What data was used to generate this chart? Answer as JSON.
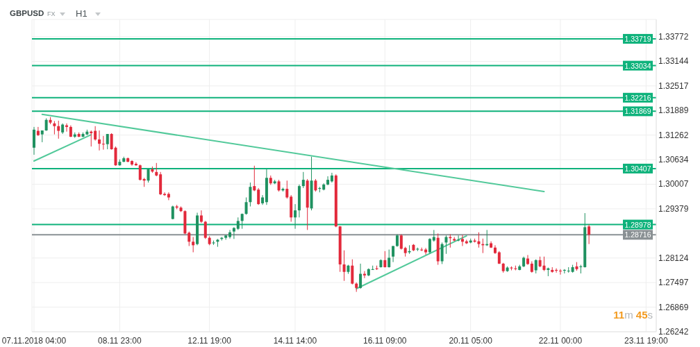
{
  "chart_data": {
    "type": "candlestick",
    "title": "GBPUSD",
    "annotations": [
      "FX",
      "H1",
      "11m 45s"
    ],
    "categories": [
      "07.11.2018 04:00",
      null,
      null,
      null,
      null,
      null,
      null,
      null,
      null,
      null,
      null,
      null,
      null,
      null,
      null,
      null,
      null,
      null,
      null,
      null,
      null,
      "08.11 23:00",
      null,
      null,
      null,
      null,
      null,
      null,
      null,
      null,
      null,
      null,
      null,
      null,
      null,
      null,
      null,
      null,
      null,
      null,
      null,
      null,
      null,
      "12.11 19:00",
      null,
      null,
      null,
      null,
      null,
      null,
      null,
      null,
      null,
      null,
      null,
      null,
      null,
      null,
      null,
      null,
      null,
      null,
      null,
      null,
      "14.11 14:00",
      null,
      null,
      null,
      null,
      null,
      null,
      null,
      null,
      null,
      null,
      null,
      null,
      null,
      null,
      null,
      null,
      null,
      null,
      null,
      null,
      null,
      "16.11 09:00",
      null,
      null,
      null,
      null,
      null,
      null,
      null,
      null,
      null,
      null,
      null,
      null,
      null,
      null,
      null,
      null,
      null,
      null,
      null,
      null,
      "20.11 05:00",
      null,
      null,
      null,
      null,
      null,
      null,
      null,
      null,
      null,
      null,
      null,
      null,
      null,
      null,
      null,
      null,
      null,
      null,
      null,
      null,
      null,
      "22.11 00:00",
      null,
      null,
      null,
      null,
      null,
      null,
      null,
      null,
      null,
      null,
      null,
      null,
      null,
      null,
      null,
      null,
      null,
      null,
      null,
      null,
      "23.11 19:00",
      null,
      null
    ],
    "ohlc": [
      [
        1.3094,
        1.3147,
        1.3076,
        1.314
      ],
      [
        1.3137,
        1.3147,
        1.3124,
        1.3126
      ],
      [
        1.3128,
        1.3138,
        1.3108,
        1.3138
      ],
      [
        1.3138,
        1.3169,
        1.3137,
        1.3165
      ],
      [
        1.3165,
        1.3172,
        1.3154,
        1.3158
      ],
      [
        1.3156,
        1.3162,
        1.3128,
        1.3149
      ],
      [
        1.3149,
        1.3163,
        1.3117,
        1.3137
      ],
      [
        1.3133,
        1.3156,
        1.3129,
        1.3153
      ],
      [
        1.3151,
        1.3156,
        1.3135,
        1.3147
      ],
      [
        1.3147,
        1.3151,
        1.3121,
        1.3122
      ],
      [
        1.3122,
        1.3133,
        1.3119,
        1.3128
      ],
      [
        1.3129,
        1.3133,
        1.3121,
        1.3122
      ],
      [
        1.3122,
        1.3133,
        1.3121,
        1.3129
      ],
      [
        1.3128,
        1.314,
        1.3126,
        1.3135
      ],
      [
        1.3135,
        1.3138,
        1.3097,
        1.3131
      ],
      [
        1.3137,
        1.3149,
        1.3112,
        1.3115
      ],
      [
        1.3115,
        1.3138,
        1.3087,
        1.3104
      ],
      [
        1.3104,
        1.3124,
        1.3089,
        1.3103
      ],
      [
        1.3103,
        1.3129,
        1.309,
        1.3129
      ],
      [
        1.3129,
        1.3131,
        1.3089,
        1.309
      ],
      [
        1.3094,
        1.3097,
        1.3048,
        1.3049
      ],
      [
        1.3049,
        1.3064,
        1.3048,
        1.3058
      ],
      [
        1.3058,
        1.3071,
        1.3057,
        1.3067
      ],
      [
        1.3067,
        1.3069,
        1.3057,
        1.3058
      ],
      [
        1.306,
        1.3062,
        1.3048,
        1.3051
      ],
      [
        1.3053,
        1.3057,
        1.3048,
        1.3049
      ],
      [
        1.3049,
        1.3051,
        1.301,
        1.3012
      ],
      [
        1.3014,
        1.3017,
        1.2994,
        1.301
      ],
      [
        1.301,
        1.304,
        1.3005,
        1.3039
      ],
      [
        1.3039,
        1.3046,
        1.303,
        1.3033
      ],
      [
        1.3032,
        1.3055,
        1.3021,
        1.3023
      ],
      [
        1.3026,
        1.3032,
        1.2973,
        1.2975
      ],
      [
        1.2976,
        1.298,
        1.2971,
        1.2973
      ],
      [
        1.2976,
        1.298,
        1.296,
        1.2967
      ],
      [
        1.2912,
        1.2946,
        1.2911,
        1.2944
      ],
      [
        1.2944,
        1.2948,
        1.2937,
        1.2941
      ],
      [
        1.2941,
        1.2944,
        1.293,
        1.2932
      ],
      [
        1.2932,
        1.2934,
        1.2873,
        1.2875
      ],
      [
        1.2877,
        1.288,
        1.2843,
        1.2854
      ],
      [
        1.2854,
        1.2866,
        1.2827,
        1.2845
      ],
      [
        1.2848,
        1.2928,
        1.2845,
        1.2921
      ],
      [
        1.2921,
        1.2934,
        1.2902,
        1.2905
      ],
      [
        1.2905,
        1.2907,
        1.2861,
        1.2864
      ],
      [
        1.2864,
        1.2868,
        1.2845,
        1.2848
      ],
      [
        1.285,
        1.2857,
        1.2846,
        1.2852
      ],
      [
        1.2854,
        1.2861,
        1.2841,
        1.2859
      ],
      [
        1.2861,
        1.2866,
        1.2857,
        1.2864
      ],
      [
        1.2864,
        1.2871,
        1.2859,
        1.287
      ],
      [
        1.2866,
        1.2884,
        1.2862,
        1.2878
      ],
      [
        1.288,
        1.2891,
        1.2861,
        1.2889
      ],
      [
        1.2887,
        1.2916,
        1.2884,
        1.2907
      ],
      [
        1.2907,
        1.2926,
        1.2887,
        1.2925
      ],
      [
        1.2925,
        1.2967,
        1.2923,
        1.2955
      ],
      [
        1.2955,
        1.3005,
        1.2944,
        1.2994
      ],
      [
        1.2996,
        1.3048,
        1.2983,
        1.2985
      ],
      [
        1.2987,
        1.2991,
        1.2948,
        1.295
      ],
      [
        1.2952,
        1.2973,
        1.2948,
        1.2967
      ],
      [
        1.2955,
        1.3039,
        1.2948,
        1.3017
      ],
      [
        1.3017,
        1.3023,
        1.2999,
        1.3003
      ],
      [
        1.3003,
        1.3012,
        1.3001,
        1.3008
      ],
      [
        1.3008,
        1.3012,
        1.2982,
        1.2985
      ],
      [
        1.2985,
        1.2992,
        1.2982,
        1.2989
      ],
      [
        1.2989,
        1.301,
        1.2964,
        1.2967
      ],
      [
        1.2969,
        1.2973,
        1.2905,
        1.2916
      ],
      [
        1.2916,
        1.295,
        1.2887,
        1.2934
      ],
      [
        1.2934,
        1.3,
        1.2916,
        1.2996
      ],
      [
        1.2996,
        1.3032,
        1.2991,
        1.3012
      ],
      [
        1.301,
        1.3014,
        1.2884,
        1.2941
      ],
      [
        1.2939,
        1.3071,
        1.2934,
        1.301
      ],
      [
        1.301,
        1.3014,
        1.2982,
        1.2985
      ],
      [
        1.2989,
        1.2994,
        1.298,
        1.2991
      ],
      [
        1.2987,
        1.3003,
        1.2985,
        1.3
      ],
      [
        1.3,
        1.3021,
        1.2998,
        1.3012
      ],
      [
        1.3008,
        1.303,
        1.3005,
        1.3023
      ],
      [
        1.3023,
        1.3026,
        1.2891,
        1.2893
      ],
      [
        1.2893,
        1.2894,
        1.2777,
        1.2796
      ],
      [
        1.2796,
        1.2832,
        1.2754,
        1.2777
      ],
      [
        1.2777,
        1.2795,
        1.2772,
        1.2793
      ],
      [
        1.2793,
        1.2809,
        1.2745,
        1.2747
      ],
      [
        1.2747,
        1.275,
        1.2726,
        1.2736
      ],
      [
        1.2736,
        1.2798,
        1.2734,
        1.2772
      ],
      [
        1.2772,
        1.2779,
        1.2761,
        1.2768
      ],
      [
        1.2768,
        1.2786,
        1.2766,
        1.2784
      ],
      [
        1.2782,
        1.2793,
        1.2782,
        1.2784
      ],
      [
        1.2786,
        1.2793,
        1.2782,
        1.2784
      ],
      [
        1.2789,
        1.2809,
        1.2788,
        1.2807
      ],
      [
        1.2807,
        1.283,
        1.2788,
        1.2789
      ],
      [
        1.2789,
        1.2834,
        1.2788,
        1.2813
      ],
      [
        1.2816,
        1.2843,
        1.2802,
        1.2843
      ],
      [
        1.2843,
        1.2873,
        1.2841,
        1.287
      ],
      [
        1.287,
        1.2873,
        1.2834,
        1.2836
      ],
      [
        1.2838,
        1.2841,
        1.2816,
        1.2825
      ],
      [
        1.2827,
        1.2845,
        1.2823,
        1.283
      ],
      [
        1.2846,
        1.2848,
        1.283,
        1.2832
      ],
      [
        1.2834,
        1.2839,
        1.283,
        1.2836
      ],
      [
        1.2834,
        1.2839,
        1.283,
        1.2832
      ],
      [
        1.2834,
        1.2838,
        1.2821,
        1.2827
      ],
      [
        1.2827,
        1.2863,
        1.2823,
        1.2861
      ],
      [
        1.2857,
        1.2884,
        1.2854,
        1.2866
      ],
      [
        1.2864,
        1.2875,
        1.2795,
        1.2804
      ],
      [
        1.2804,
        1.2852,
        1.2797,
        1.2848
      ],
      [
        1.2852,
        1.287,
        1.2823,
        1.2866
      ],
      [
        1.2866,
        1.2873,
        1.2839,
        1.2863
      ],
      [
        1.2861,
        1.2866,
        1.2855,
        1.2857
      ],
      [
        1.2857,
        1.287,
        1.2855,
        1.2859
      ],
      [
        1.2861,
        1.2871,
        1.2843,
        1.2854
      ],
      [
        1.2855,
        1.2859,
        1.2848,
        1.285
      ],
      [
        1.2852,
        1.2862,
        1.285,
        1.2857
      ],
      [
        1.2857,
        1.2862,
        1.2852,
        1.2854
      ],
      [
        1.2855,
        1.2878,
        1.2839,
        1.2848
      ],
      [
        1.2848,
        1.2862,
        1.2825,
        1.2845
      ],
      [
        1.2845,
        1.2884,
        1.2843,
        1.2848
      ],
      [
        1.285,
        1.2855,
        1.2838,
        1.2839
      ],
      [
        1.2839,
        1.2845,
        1.2823,
        1.2825
      ],
      [
        1.2827,
        1.283,
        1.2797,
        1.2798
      ],
      [
        1.2798,
        1.28,
        1.2775,
        1.2779
      ],
      [
        1.2779,
        1.2791,
        1.2777,
        1.2788
      ],
      [
        1.2788,
        1.2791,
        1.2781,
        1.2786
      ],
      [
        1.2786,
        1.2793,
        1.2781,
        1.2784
      ],
      [
        1.2782,
        1.2795,
        1.2781,
        1.2791
      ],
      [
        1.2791,
        1.2816,
        1.2789,
        1.2813
      ],
      [
        1.2811,
        1.282,
        1.2795,
        1.2797
      ],
      [
        1.2798,
        1.2804,
        1.2775,
        1.2777
      ],
      [
        1.2781,
        1.2809,
        1.2773,
        1.2807
      ],
      [
        1.2807,
        1.2816,
        1.2789,
        1.2791
      ],
      [
        1.2793,
        1.2816,
        1.2779,
        1.2782
      ],
      [
        1.2782,
        1.2788,
        1.2766,
        1.2786
      ],
      [
        1.2782,
        1.2789,
        1.2775,
        1.2777
      ],
      [
        1.2782,
        1.2786,
        1.2775,
        1.278
      ],
      [
        1.278,
        1.2784,
        1.277,
        1.2779
      ],
      [
        1.278,
        1.2784,
        1.2773,
        1.2782
      ],
      [
        1.2779,
        1.2789,
        1.2775,
        1.278
      ],
      [
        1.2777,
        1.2795,
        1.2775,
        1.2789
      ],
      [
        1.2791,
        1.2802,
        1.278,
        1.2784
      ],
      [
        1.2789,
        1.2795,
        1.2773,
        1.2791
      ],
      [
        1.2789,
        1.2927,
        1.2788,
        1.2891
      ],
      [
        1.2893,
        1.2898,
        1.2848,
        1.2872
      ],
      null,
      null,
      null,
      null,
      null,
      null,
      null,
      null,
      null,
      null,
      null,
      null,
      null,
      null,
      null,
      null
    ],
    "colors": [
      "#1f9160",
      "#e2293b",
      "#1f9160",
      "#1f9160",
      "#e2293b",
      "#e2293b",
      "#e2293b",
      "#1f9160",
      "#e2293b",
      "#e2293b",
      "#1f9160",
      "#e2293b",
      "#1f9160",
      "#1f9160",
      "#e2293b",
      "#e2293b",
      "#e2293b",
      "#e2293b",
      "#1f9160",
      "#e2293b",
      "#e2293b",
      "#1f9160",
      "#1f9160",
      "#e2293b",
      "#e2293b",
      "#e2293b",
      "#e2293b",
      "#e2293b",
      "#1f9160",
      "#e2293b",
      "#e2293b",
      "#e2293b",
      "#e2293b",
      "#e2293b",
      "#1f9160",
      "#e2293b",
      "#e2293b",
      "#e2293b",
      "#e2293b",
      "#e2293b",
      "#1f9160",
      "#e2293b",
      "#e2293b",
      "#e2293b",
      "#1f9160",
      "#1f9160",
      "#1f9160",
      "#1f9160",
      "#1f9160",
      "#1f9160",
      "#1f9160",
      "#1f9160",
      "#1f9160",
      "#1f9160",
      "#e2293b",
      "#e2293b",
      "#1f9160",
      "#1f9160",
      "#e2293b",
      "#1f9160",
      "#e2293b",
      "#1f9160",
      "#e2293b",
      "#e2293b",
      "#1f9160",
      "#1f9160",
      "#1f9160",
      "#e2293b",
      "#1f9160",
      "#e2293b",
      "#1f9160",
      "#1f9160",
      "#1f9160",
      "#1f9160",
      "#e2293b",
      "#e2293b",
      "#e2293b",
      "#1f9160",
      "#e2293b",
      "#e2293b",
      "#1f9160",
      "#e2293b",
      "#1f9160",
      "#1f9160",
      "#e2293b",
      "#1f9160",
      "#e2293b",
      "#1f9160",
      "#1f9160",
      "#1f9160",
      "#e2293b",
      "#e2293b",
      "#1f9160",
      "#e2293b",
      "#1f9160",
      "#e2293b",
      "#e2293b",
      "#1f9160",
      "#1f9160",
      "#e2293b",
      "#1f9160",
      "#1f9160",
      "#e2293b",
      "#e2293b",
      "#1f9160",
      "#e2293b",
      "#e2293b",
      "#1f9160",
      "#e2293b",
      "#e2293b",
      "#e2293b",
      "#1f9160",
      "#e2293b",
      "#e2293b",
      "#e2293b",
      "#e2293b",
      "#1f9160",
      "#e2293b",
      "#e2293b",
      "#1f9160",
      "#1f9160",
      "#e2293b",
      "#e2293b",
      "#1f9160",
      "#e2293b",
      "#e2293b",
      "#1f9160",
      "#e2293b",
      "#e2293b",
      "#e2293b",
      "#1f9160",
      "#1f9160",
      "#1f9160",
      "#e2293b",
      "#1f9160",
      "#1f9160",
      "#e2293b",
      null,
      null,
      null,
      null,
      null,
      null,
      null,
      null,
      null,
      null,
      null,
      null,
      null,
      null,
      null,
      null
    ],
    "series": [
      {
        "type": "line",
        "color": "#52c99a",
        "values": [
          null,
          null,
          1.3179,
          null,
          null,
          null,
          null,
          null,
          null,
          null,
          null,
          null,
          null,
          null,
          null,
          null,
          null,
          null,
          null,
          null,
          null,
          null,
          null,
          null,
          null,
          null,
          null,
          null,
          null,
          null,
          null,
          null,
          null,
          null,
          null,
          null,
          null,
          null,
          null,
          null,
          null,
          null,
          null,
          null,
          null,
          null,
          null,
          null,
          null,
          null,
          null,
          null,
          null,
          null,
          null,
          null,
          null,
          null,
          null,
          null,
          null,
          null,
          null,
          null,
          null,
          null,
          null,
          null,
          null,
          null,
          null,
          null,
          null,
          null,
          null,
          null,
          null,
          null,
          null,
          null,
          null,
          null,
          null,
          null,
          null,
          null,
          null,
          null,
          null,
          null,
          null,
          null,
          null,
          null,
          null,
          null,
          null,
          null,
          null,
          null,
          null,
          null,
          null,
          null,
          null,
          null,
          null,
          null,
          null,
          null,
          null,
          null,
          null,
          null,
          null,
          null,
          null,
          null,
          null,
          null,
          null,
          null,
          null,
          null,
          null,
          1.2982,
          null,
          null,
          null,
          null,
          null,
          null,
          null,
          null,
          null,
          null,
          null,
          null,
          null,
          null,
          null,
          null,
          null,
          null,
          null,
          null,
          null,
          null,
          null,
          null,
          null,
          null,
          null
        ]
      },
      {
        "type": "line",
        "color": "#52c99a",
        "values": [
          1.306,
          null,
          null,
          null,
          null,
          null,
          null,
          null,
          null,
          null,
          null,
          null,
          null,
          null,
          1.3127,
          null,
          null,
          null,
          null,
          null,
          null,
          null,
          null,
          null,
          null,
          null,
          null,
          null,
          null,
          null,
          null,
          null,
          null,
          null,
          null,
          null,
          null,
          null,
          null,
          null,
          null,
          null,
          null,
          null,
          null,
          null,
          null,
          null,
          null,
          null,
          null,
          null,
          null,
          null,
          null,
          null,
          null,
          null,
          null,
          null,
          null,
          null,
          null,
          null,
          null,
          null,
          null,
          null,
          null,
          null,
          null,
          null,
          null,
          null,
          null,
          null,
          null,
          null,
          null,
          null,
          null,
          null,
          null,
          null,
          null,
          null,
          null,
          null,
          null,
          null,
          null,
          null,
          null,
          null,
          null,
          null,
          null,
          null,
          null,
          null,
          null,
          null,
          null,
          null,
          null,
          null,
          null,
          null,
          null,
          null,
          null,
          null,
          null,
          null,
          null,
          null,
          null,
          null,
          null,
          null,
          null,
          null,
          null,
          null,
          null,
          null,
          null,
          null,
          null,
          null,
          null,
          null,
          null,
          null,
          null,
          null,
          null,
          null,
          null,
          null,
          null,
          null,
          null,
          null,
          null,
          null,
          null,
          null,
          null,
          null,
          null,
          null,
          null
        ]
      },
      {
        "type": "line",
        "color": "#52c99a",
        "values": [
          null,
          null,
          null,
          null,
          null,
          null,
          null,
          null,
          null,
          null,
          null,
          null,
          null,
          null,
          null,
          null,
          null,
          null,
          null,
          null,
          null,
          null,
          null,
          null,
          null,
          null,
          null,
          null,
          null,
          null,
          null,
          null,
          null,
          null,
          null,
          null,
          null,
          null,
          null,
          null,
          null,
          null,
          null,
          null,
          null,
          null,
          null,
          null,
          null,
          null,
          null,
          null,
          null,
          null,
          null,
          null,
          null,
          null,
          null,
          null,
          null,
          null,
          null,
          null,
          null,
          null,
          null,
          null,
          null,
          null,
          null,
          null,
          null,
          null,
          null,
          null,
          null,
          null,
          null,
          1.2734,
          null,
          null,
          null,
          null,
          null,
          null,
          null,
          null,
          null,
          null,
          null,
          null,
          null,
          null,
          null,
          null,
          null,
          null,
          null,
          null,
          null,
          null,
          null,
          null,
          null,
          null,
          1.2869,
          null,
          null,
          null,
          null,
          null,
          null,
          null,
          null,
          null,
          null,
          null,
          null,
          null,
          null,
          null,
          null,
          null,
          null,
          null,
          null,
          null,
          null,
          null,
          null,
          null,
          null,
          null,
          null,
          null,
          null,
          null,
          null,
          null,
          null,
          null,
          null,
          null,
          null,
          null,
          null,
          null,
          null,
          null,
          null,
          null,
          null
        ]
      }
    ],
    "ref_lines": [
      {
        "axis": "y",
        "value": 1.33719,
        "label": "1.33719",
        "color": "#0eb27b"
      },
      {
        "axis": "y",
        "value": 1.33034,
        "label": "1.33034",
        "color": "#0eb27b"
      },
      {
        "axis": "y",
        "value": 1.32216,
        "label": "1.32216",
        "color": "#0eb27b"
      },
      {
        "axis": "y",
        "value": 1.31869,
        "label": "1.31869",
        "color": "#0eb27b"
      },
      {
        "axis": "y",
        "value": 1.30407,
        "label": "1.30407",
        "color": "#0eb27b"
      },
      {
        "axis": "y",
        "value": 1.28978,
        "label": "1.28978",
        "color": "#0eb27b"
      },
      {
        "axis": "y",
        "value": 1.28716,
        "label": "1.28716",
        "color": "#8a9194"
      }
    ],
    "ylim": [
      1.26242,
      1.34214
    ],
    "yticks": [
      1.26242,
      1.26869,
      1.27497,
      1.28124,
      1.29379,
      1.30007,
      1.30634,
      1.31262,
      1.31889,
      1.32517,
      1.33144,
      1.33772
    ],
    "grid": true
  }
}
